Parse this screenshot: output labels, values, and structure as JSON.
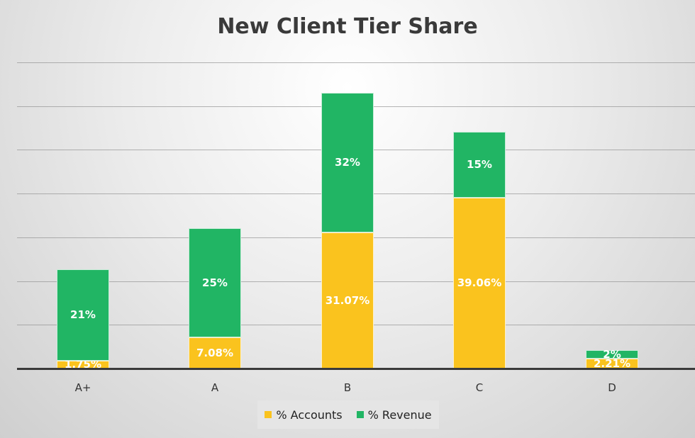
{
  "chart_data": {
    "type": "bar",
    "stacked": true,
    "title": "New Client Tier Share",
    "xlabel": "",
    "ylabel": "",
    "categories": [
      "A+",
      "A",
      "B",
      "C",
      "D"
    ],
    "series": [
      {
        "name": "% Accounts",
        "color": "#fac31e",
        "values": [
          1.75,
          7.08,
          31.07,
          39.06,
          2.21
        ],
        "labels": [
          "1.75%",
          "7.08%",
          "31.07%",
          "39.06%",
          "2.21%"
        ]
      },
      {
        "name": "% Revenue",
        "color": "#21b564",
        "values": [
          21,
          25,
          32,
          15,
          2
        ],
        "labels": [
          "21%",
          "25%",
          "32%",
          "15%",
          "2%"
        ]
      }
    ],
    "ylim": [
      0,
      70
    ],
    "grid": true,
    "y_tick_labels_shown": false,
    "legend_position": "bottom"
  },
  "legend": {
    "items": [
      {
        "label": "% Accounts",
        "color": "#fac31e"
      },
      {
        "label": "% Revenue",
        "color": "#21b564"
      }
    ]
  }
}
